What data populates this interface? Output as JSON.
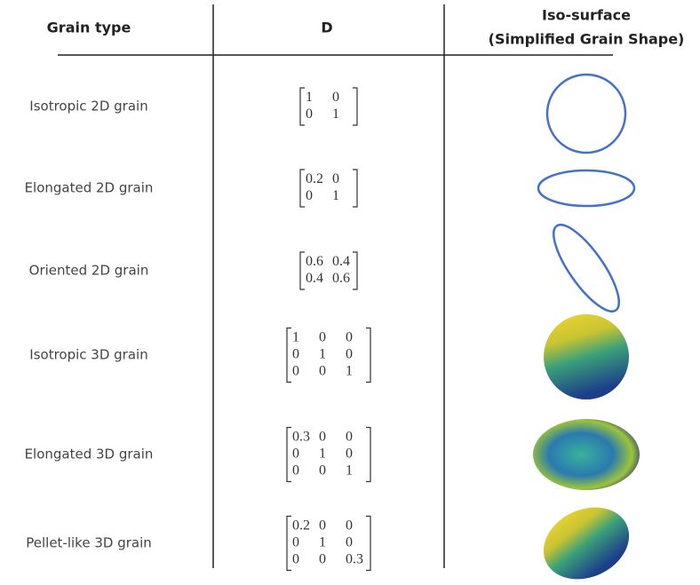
{
  "header": {
    "columns": [
      "Grain type",
      "D",
      "Iso-surface",
      "(Simplified Grain Shape)"
    ]
  },
  "table": {
    "rows": [
      {
        "name": "Isotropic 2D grain",
        "matrix": [
          [
            1,
            0
          ],
          [
            0,
            1
          ]
        ]
      },
      {
        "name": "Elongated 2D grain",
        "matrix": [
          [
            0.2,
            0
          ],
          [
            0,
            1
          ]
        ]
      },
      {
        "name": "Oriented 2D grain",
        "matrix": [
          [
            0.6,
            0.4
          ],
          [
            0.4,
            0.6
          ]
        ]
      },
      {
        "name": "Isotropic 3D grain",
        "matrix": [
          [
            1,
            0,
            0
          ],
          [
            0,
            1,
            0
          ],
          [
            0,
            0,
            1
          ]
        ]
      },
      {
        "name": "Elongated 3D grain",
        "matrix": [
          [
            0.3,
            0,
            0
          ],
          [
            0,
            1,
            0
          ],
          [
            0,
            0,
            1
          ]
        ]
      },
      {
        "name": "Pellet-like 3D grain",
        "matrix": [
          [
            0.2,
            0,
            0
          ],
          [
            0,
            1,
            0
          ],
          [
            0,
            0,
            0.3
          ]
        ]
      }
    ]
  }
}
